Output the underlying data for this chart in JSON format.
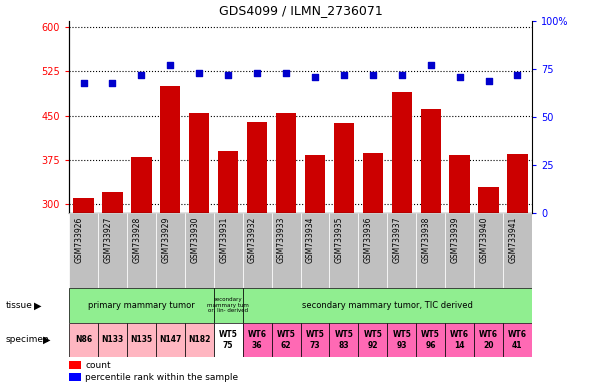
{
  "title": "GDS4099 / ILMN_2736071",
  "samples": [
    "GSM733926",
    "GSM733927",
    "GSM733928",
    "GSM733929",
    "GSM733930",
    "GSM733931",
    "GSM733932",
    "GSM733933",
    "GSM733934",
    "GSM733935",
    "GSM733936",
    "GSM733937",
    "GSM733938",
    "GSM733939",
    "GSM733940",
    "GSM733941"
  ],
  "counts": [
    310,
    320,
    380,
    500,
    455,
    390,
    440,
    455,
    383,
    437,
    387,
    490,
    462,
    383,
    330,
    385
  ],
  "percentile_ranks": [
    68,
    68,
    72,
    77,
    73,
    72,
    73,
    73,
    71,
    72,
    72,
    72,
    77,
    71,
    69,
    72
  ],
  "ylim_left": [
    285,
    610
  ],
  "ylim_right": [
    0,
    100
  ],
  "yticks_left": [
    300,
    375,
    450,
    525,
    600
  ],
  "yticks_right": [
    0,
    25,
    50,
    75,
    100
  ],
  "bar_color": "#CC0000",
  "dot_color": "#0000CC",
  "background_color": "#ffffff",
  "xtick_bg_color": "#c0c0c0",
  "tissue_primary_color": "#90EE90",
  "tissue_secondary_lin_color": "#90EE90",
  "tissue_secondary_tic_color": "#90EE90",
  "specimen_pink_color": "#FFB6C1",
  "specimen_white_color": "#ffffff",
  "specimen_magenta_color": "#FF69B4",
  "specimen_data": [
    {
      "text": "N86",
      "idx": 0,
      "color": "#FFB6C1",
      "multiline": false
    },
    {
      "text": "N133",
      "idx": 1,
      "color": "#FFB6C1",
      "multiline": false
    },
    {
      "text": "N135",
      "idx": 2,
      "color": "#FFB6C1",
      "multiline": false
    },
    {
      "text": "N147",
      "idx": 3,
      "color": "#FFB6C1",
      "multiline": false
    },
    {
      "text": "N182",
      "idx": 4,
      "color": "#FFB6C1",
      "multiline": false
    },
    {
      "text": "WT5\n75",
      "idx": 5,
      "color": "#ffffff",
      "multiline": true
    },
    {
      "text": "WT6\n36",
      "idx": 6,
      "color": "#FF69B4",
      "multiline": true
    },
    {
      "text": "WT5\n62",
      "idx": 7,
      "color": "#FF69B4",
      "multiline": true
    },
    {
      "text": "WT5\n73",
      "idx": 8,
      "color": "#FF69B4",
      "multiline": true
    },
    {
      "text": "WT5\n83",
      "idx": 9,
      "color": "#FF69B4",
      "multiline": true
    },
    {
      "text": "WT5\n92",
      "idx": 10,
      "color": "#FF69B4",
      "multiline": true
    },
    {
      "text": "WT5\n93",
      "idx": 11,
      "color": "#FF69B4",
      "multiline": true
    },
    {
      "text": "WT5\n96",
      "idx": 12,
      "color": "#FF69B4",
      "multiline": true
    },
    {
      "text": "WT6\n14",
      "idx": 13,
      "color": "#FF69B4",
      "multiline": true
    },
    {
      "text": "WT6\n20",
      "idx": 14,
      "color": "#FF69B4",
      "multiline": true
    },
    {
      "text": "WT6\n41",
      "idx": 15,
      "color": "#FF69B4",
      "multiline": true
    }
  ]
}
